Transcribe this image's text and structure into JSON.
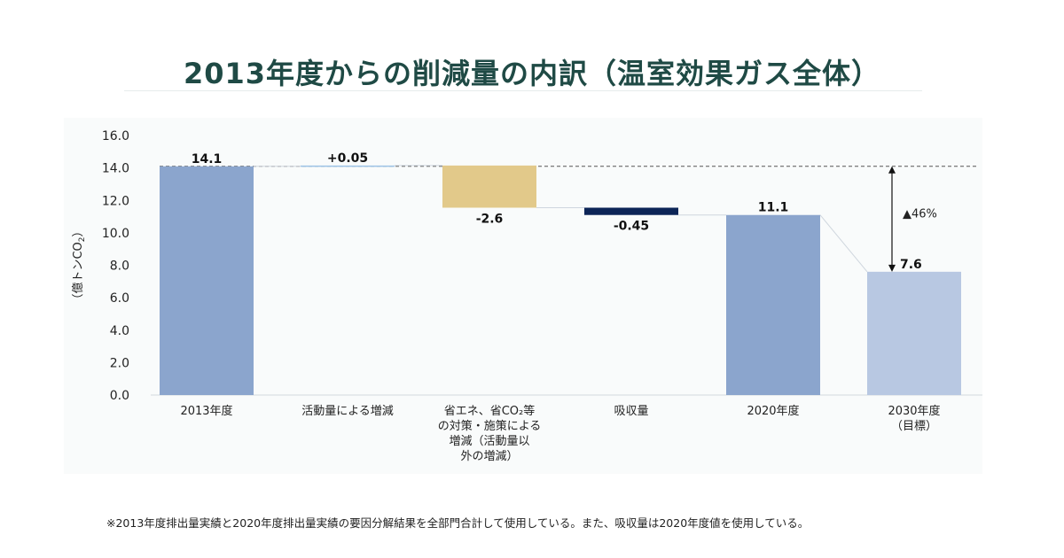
{
  "title": "2013年度からの削減量の内訳（温室効果ガス全体）",
  "footnote": "※2013年度排出量実績と2020年度排出量実績の要因分解結果を全部門合計して使用している。また、吸収量は2020年度値を使用している。",
  "chart_data": {
    "type": "waterfall",
    "ylabel": "（億トンCO2）",
    "ylim": [
      0,
      16
    ],
    "yticks": [
      "0.0",
      "2.0",
      "4.0",
      "6.0",
      "8.0",
      "10.0",
      "12.0",
      "14.0",
      "16.0"
    ],
    "grid": false,
    "bars": [
      {
        "category": [
          "2013年度"
        ],
        "kind": "total",
        "start": 0,
        "end": 14.1,
        "label": "14.1",
        "color": "#8ba5cd"
      },
      {
        "category": [
          "活動量による増減"
        ],
        "kind": "delta",
        "start": 14.1,
        "end": 14.15,
        "label": "+0.05",
        "color": "#9dc3e6"
      },
      {
        "category": [
          "省エネ、省CO₂等",
          "の対策・施策による",
          "増減（活動量以",
          "外の増減）"
        ],
        "kind": "delta",
        "start": 14.15,
        "end": 11.55,
        "label": "-2.6",
        "color": "#e2c98a"
      },
      {
        "category": [
          "吸収量"
        ],
        "kind": "delta",
        "start": 11.55,
        "end": 11.1,
        "label": "-0.45",
        "color": "#0d2557"
      },
      {
        "category": [
          "2020年度"
        ],
        "kind": "total",
        "start": 0,
        "end": 11.1,
        "label": "11.1",
        "color": "#8ba5cd"
      },
      {
        "category": [
          "2030年度",
          "（目標）"
        ],
        "kind": "target",
        "start": 0,
        "end": 7.6,
        "label": "7.6",
        "color": "#b8c8e2"
      }
    ],
    "reference_line": {
      "value": 14.1,
      "style": "dashed"
    },
    "annotation": {
      "text": "▲46%",
      "from": 14.1,
      "to": 7.6
    }
  }
}
